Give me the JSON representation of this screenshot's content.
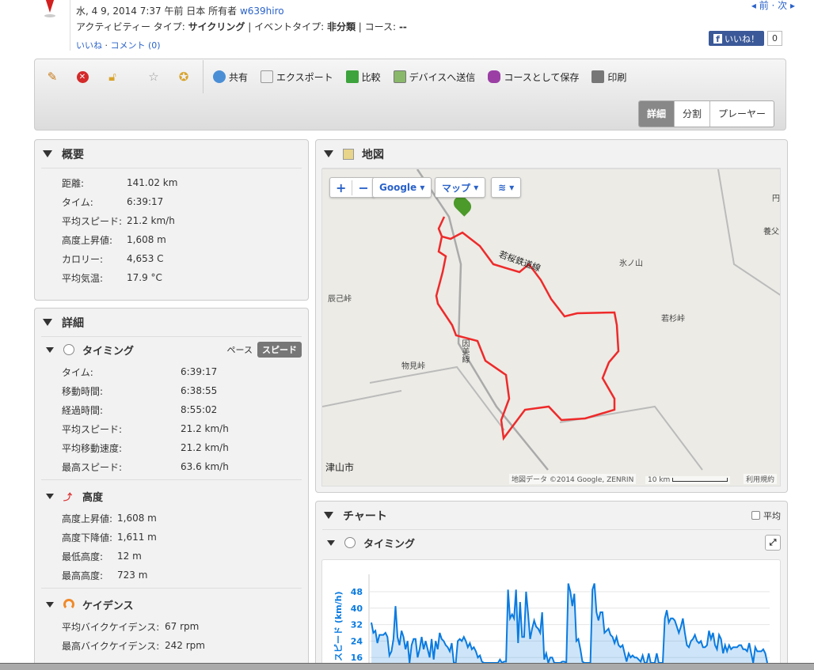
{
  "header": {
    "date": "水, 4 9, 2014 7:37 午前 日本",
    "owner_label": "所有者",
    "owner": "w639hiro",
    "activity_type_label": "アクティビティー タイプ:",
    "activity_type": "サイクリング",
    "event_type_label": "イベントタイプ:",
    "event_type": "非分類",
    "course_label": "コース:",
    "course": "--",
    "like": "いいね",
    "comment": "コメント (0)",
    "prev_next": "◂ 前 · 次 ▸"
  },
  "facebook": {
    "like": "いいね！",
    "count": "0"
  },
  "toolbar": {
    "actions": [
      "共有",
      "エクスポート",
      "比較",
      "デバイスへ送信",
      "コースとして保存",
      "印刷"
    ],
    "views": [
      "詳細",
      "分割",
      "プレーヤー"
    ],
    "active_view": "詳細",
    "icons": [
      "pencil-icon",
      "delete-icon",
      "lock-icon",
      "star-icon",
      "award-icon"
    ]
  },
  "summary": {
    "title": "概要",
    "rows": [
      [
        "距離:",
        "141.02 km"
      ],
      [
        "タイム:",
        "6:39:17"
      ],
      [
        "平均スピード:",
        "21.2 km/h"
      ],
      [
        "高度上昇値:",
        "1,608 m"
      ],
      [
        "カロリー:",
        "4,653 C"
      ],
      [
        "平均気温:",
        "17.9 °C"
      ]
    ]
  },
  "details": {
    "title": "詳細",
    "timing": {
      "title": "タイミング",
      "pace": "ペース",
      "speed": "スピード",
      "rows": [
        [
          "タイム:",
          "6:39:17"
        ],
        [
          "移動時間:",
          "6:38:55"
        ],
        [
          "経過時間:",
          "8:55:02"
        ],
        [
          "平均スピード:",
          "21.2 km/h"
        ],
        [
          "平均移動速度:",
          "21.2 km/h"
        ],
        [
          "最高スピード:",
          "63.6 km/h"
        ]
      ]
    },
    "elevation": {
      "title": "高度",
      "rows": [
        [
          "高度上昇値:",
          "1,608 m"
        ],
        [
          "高度下降値:",
          "1,611 m"
        ],
        [
          "最低高度:",
          "12 m"
        ],
        [
          "最高高度:",
          "723 m"
        ]
      ]
    },
    "cadence": {
      "title": "ケイデンス",
      "rows": [
        [
          "平均バイクケイデンス:",
          "67 rpm"
        ],
        [
          "最高バイクケイデンス:",
          "242 rpm"
        ]
      ]
    }
  },
  "map": {
    "title": "地図",
    "provider": "Google",
    "type": "マップ",
    "labels": [
      "若桜鉄道線",
      "氷ノ山",
      "辰己峠",
      "若杉峠",
      "因美線",
      "物見峠",
      "津山市",
      "養父",
      "円"
    ],
    "attribution": "地図データ ©2014 Google, ZENRIN",
    "scale": "10 km",
    "terms": "利用規約"
  },
  "chart": {
    "title": "チャート",
    "avg_label": "平均",
    "sub_title": "タイミング"
  },
  "chart_data": {
    "type": "area",
    "ylabel": "スピード (km/h)",
    "yticks": [
      16,
      24,
      32,
      40,
      48
    ],
    "color": "#0a7be0",
    "values": [
      33,
      28,
      29,
      23,
      27,
      27,
      27,
      28,
      26,
      17,
      19,
      25,
      41,
      26,
      22,
      29,
      26,
      20,
      24,
      12,
      22,
      25,
      25,
      16,
      20,
      26,
      20,
      24,
      20,
      16,
      25,
      15,
      24,
      20,
      28,
      25,
      24,
      22,
      21,
      19,
      23,
      12,
      12,
      24,
      25,
      24,
      26,
      24,
      21,
      23,
      20,
      21,
      19,
      16,
      17,
      14,
      12,
      11,
      11,
      12,
      11,
      10,
      10,
      11,
      15,
      11,
      14,
      14,
      49,
      35,
      37,
      35,
      49,
      23,
      43,
      26,
      26,
      48,
      37,
      25,
      30,
      34,
      31,
      30,
      28,
      38,
      15,
      18,
      13,
      16,
      16,
      11,
      10,
      10,
      11,
      14,
      14,
      11,
      52,
      48,
      41,
      47,
      24,
      25,
      20,
      14,
      12,
      11,
      11,
      10,
      49,
      52,
      38,
      34,
      38,
      38,
      28,
      29,
      30,
      27,
      26,
      23,
      26,
      22,
      21,
      22,
      18,
      14,
      18,
      16,
      17,
      16,
      16,
      15,
      14,
      17,
      13,
      12,
      18,
      12,
      12,
      12,
      18,
      11,
      12,
      11,
      35,
      39,
      33,
      35,
      35,
      34,
      31,
      28,
      31,
      35,
      28,
      22,
      21,
      24,
      25,
      27,
      24,
      23,
      24,
      21,
      21,
      22,
      29,
      25,
      28,
      22,
      20,
      27,
      25,
      18,
      22,
      19,
      22,
      20,
      21,
      21,
      21,
      22,
      22,
      20,
      20,
      19,
      23,
      18,
      11,
      21,
      19,
      19,
      19,
      20,
      18,
      11
    ]
  }
}
